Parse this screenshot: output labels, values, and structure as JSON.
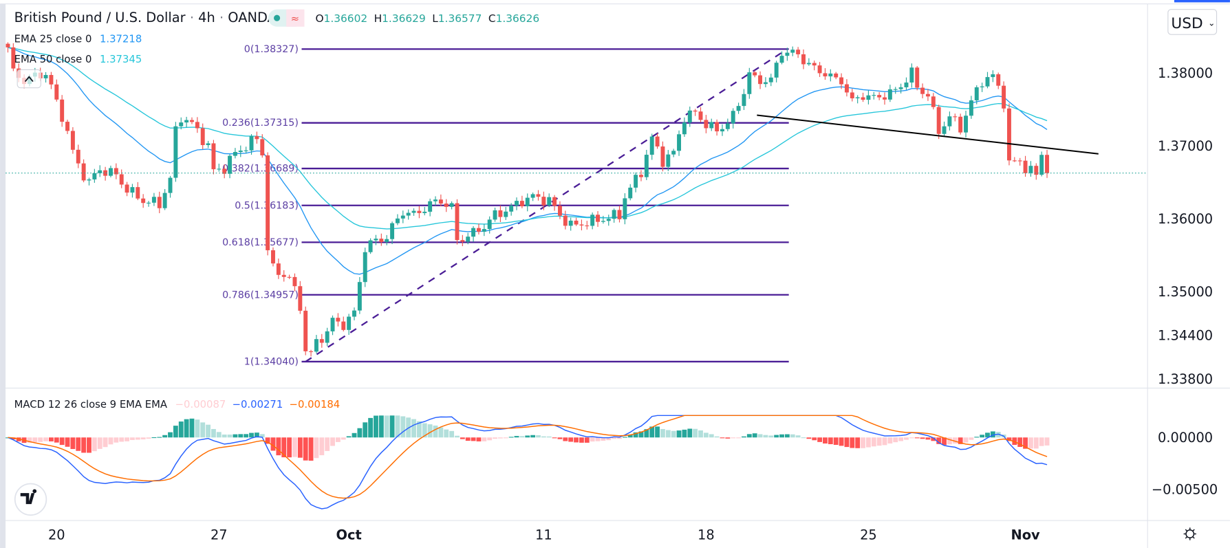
{
  "header": {
    "symbol": "British Pound / U.S. Dollar",
    "interval": "4h",
    "exchange": "OANDA",
    "sep": "·",
    "market_status_icon": "market-open-dot-icon",
    "data_icon": "≈",
    "ohlc": {
      "o_label": "O",
      "o": "1.36602",
      "h_label": "H",
      "h": "1.36629",
      "l_label": "L",
      "l": "1.36577",
      "c_label": "C",
      "c": "1.36626"
    }
  },
  "legend": {
    "ema25": {
      "label": "EMA 25 close 0",
      "value": "1.37218",
      "color": "#2196f3"
    },
    "ema50": {
      "label": "EMA 50 close 0",
      "value": "1.37345",
      "color": "#26c6da"
    },
    "collapse_icon": "^"
  },
  "currency_button": {
    "label": "USD",
    "chevron": "⌄"
  },
  "macd_legend": {
    "label": "MACD 12 26 close 9 EMA EMA",
    "hist": "−0.00087",
    "macd": "−0.00271",
    "signal": "−0.00184"
  },
  "colors": {
    "up": "#26a69a",
    "down": "#ef5350",
    "fib": "#4a1d96",
    "macd": "#2962ff",
    "signal": "#ff6d00",
    "hist_up_strong": "#26a69a",
    "hist_up_weak": "#b2dfdb",
    "hist_down_strong": "#ff5252",
    "hist_down_weak": "#ffcdd2",
    "price_line": "#26a69a",
    "trendline": "#000000"
  },
  "chart_data": {
    "type": "candlestick",
    "title": "British Pound / U.S. Dollar · 4h · OANDA",
    "bar_count": 193,
    "price_path_note_units": "[bar index, price]",
    "price_path": [
      [
        0,
        1.3835
      ],
      [
        1,
        1.38
      ],
      [
        3,
        1.379
      ],
      [
        5,
        1.3795
      ],
      [
        7,
        1.38
      ],
      [
        9,
        1.376
      ],
      [
        11,
        1.372
      ],
      [
        12,
        1.369
      ],
      [
        14,
        1.366
      ],
      [
        15,
        1.365
      ],
      [
        17,
        1.3668
      ],
      [
        20,
        1.366
      ],
      [
        22,
        1.364
      ],
      [
        25,
        1.3625
      ],
      [
        28,
        1.362
      ],
      [
        30,
        1.3655
      ],
      [
        31,
        1.372
      ],
      [
        32,
        1.374
      ],
      [
        34,
        1.373
      ],
      [
        37,
        1.37
      ],
      [
        38,
        1.3665
      ],
      [
        40,
        1.367
      ],
      [
        42,
        1.369
      ],
      [
        44,
        1.37
      ],
      [
        46,
        1.371
      ],
      [
        47,
        1.369
      ],
      [
        48,
        1.356
      ],
      [
        49,
        1.353
      ],
      [
        52,
        1.352
      ],
      [
        54,
        1.348
      ],
      [
        55,
        1.342
      ],
      [
        56,
        1.3415
      ],
      [
        57,
        1.343
      ],
      [
        59,
        1.3445
      ],
      [
        60,
        1.346
      ],
      [
        62,
        1.3455
      ],
      [
        64,
        1.347
      ],
      [
        66,
        1.356
      ],
      [
        68,
        1.357
      ],
      [
        70,
        1.3575
      ],
      [
        72,
        1.36
      ],
      [
        73,
        1.361
      ],
      [
        75,
        1.3605
      ],
      [
        78,
        1.362
      ],
      [
        80,
        1.3625
      ],
      [
        82,
        1.3615
      ],
      [
        83,
        1.357
      ],
      [
        86,
        1.358
      ],
      [
        88,
        1.359
      ],
      [
        90,
        1.3605
      ],
      [
        93,
        1.3615
      ],
      [
        95,
        1.3625
      ],
      [
        97,
        1.363
      ],
      [
        100,
        1.3625
      ],
      [
        102,
        1.3605
      ],
      [
        104,
        1.359
      ],
      [
        107,
        1.3595
      ],
      [
        110,
        1.36
      ],
      [
        113,
        1.3605
      ],
      [
        114,
        1.363
      ],
      [
        117,
        1.3665
      ],
      [
        119,
        1.371
      ],
      [
        121,
        1.368
      ],
      [
        123,
        1.369
      ],
      [
        125,
        1.374
      ],
      [
        127,
        1.3745
      ],
      [
        129,
        1.373
      ],
      [
        131,
        1.372
      ],
      [
        134,
        1.374
      ],
      [
        136,
        1.3775
      ],
      [
        137,
        1.38
      ],
      [
        138,
        1.379
      ],
      [
        141,
        1.379
      ],
      [
        142,
        1.381
      ],
      [
        143,
        1.383
      ],
      [
        146,
        1.3825
      ],
      [
        149,
        1.3805
      ],
      [
        151,
        1.38
      ],
      [
        153,
        1.379
      ],
      [
        154,
        1.379
      ],
      [
        156,
        1.376
      ],
      [
        158,
        1.377
      ],
      [
        160,
        1.3765
      ],
      [
        162,
        1.377
      ],
      [
        164,
        1.3775
      ],
      [
        167,
        1.38
      ],
      [
        168,
        1.378
      ],
      [
        170,
        1.377
      ],
      [
        172,
        1.372
      ],
      [
        174,
        1.374
      ],
      [
        176,
        1.3725
      ],
      [
        178,
        1.376
      ],
      [
        180,
        1.379
      ],
      [
        182,
        1.3795
      ],
      [
        183,
        1.378
      ],
      [
        184,
        1.376
      ],
      [
        185,
        1.3675
      ],
      [
        187,
        1.368
      ],
      [
        188,
        1.367
      ],
      [
        190,
        1.366
      ],
      [
        191,
        1.369
      ],
      [
        192,
        1.36626
      ]
    ],
    "last_price": 1.36626,
    "y_ticks": [
      "1.38000",
      "1.37000",
      "1.36000",
      "1.35000",
      "1.34400",
      "1.33800"
    ],
    "y_tick_values": [
      1.38,
      1.37,
      1.36,
      1.35,
      1.344,
      1.338
    ],
    "x_ticks": [
      {
        "label": "20",
        "bar": 9
      },
      {
        "label": "27",
        "bar": 39
      },
      {
        "label": "Oct",
        "bar": 63
      },
      {
        "label": "11",
        "bar": 99
      },
      {
        "label": "18",
        "bar": 129
      },
      {
        "label": "25",
        "bar": 159
      },
      {
        "label": "Nov",
        "bar": 188
      }
    ],
    "fibonacci": {
      "start_bar": 55,
      "end_bar": 144,
      "levels": [
        {
          "label": "0(1.38327)",
          "price": 1.38327
        },
        {
          "label": "0.236(1.37315)",
          "price": 1.37315
        },
        {
          "label": "0.382(1.36689)",
          "price": 1.36689
        },
        {
          "label": "0.5(1.36183)",
          "price": 1.36183
        },
        {
          "label": "0.618(1.35677)",
          "price": 1.35677
        },
        {
          "label": "0.786(1.34957)",
          "price": 1.34957
        },
        {
          "label": "1(1.34040)",
          "price": 1.3404
        }
      ]
    },
    "trendline": [
      [
        138.4,
        1.3742
      ],
      [
        201.5,
        1.3689
      ]
    ],
    "indicators": [
      "EMA 25",
      "EMA 50",
      "MACD 12 26 9"
    ],
    "macd_ticks": [
      "0.00000",
      "−0.00500"
    ],
    "macd_tick_values": [
      0,
      -0.005
    ]
  }
}
